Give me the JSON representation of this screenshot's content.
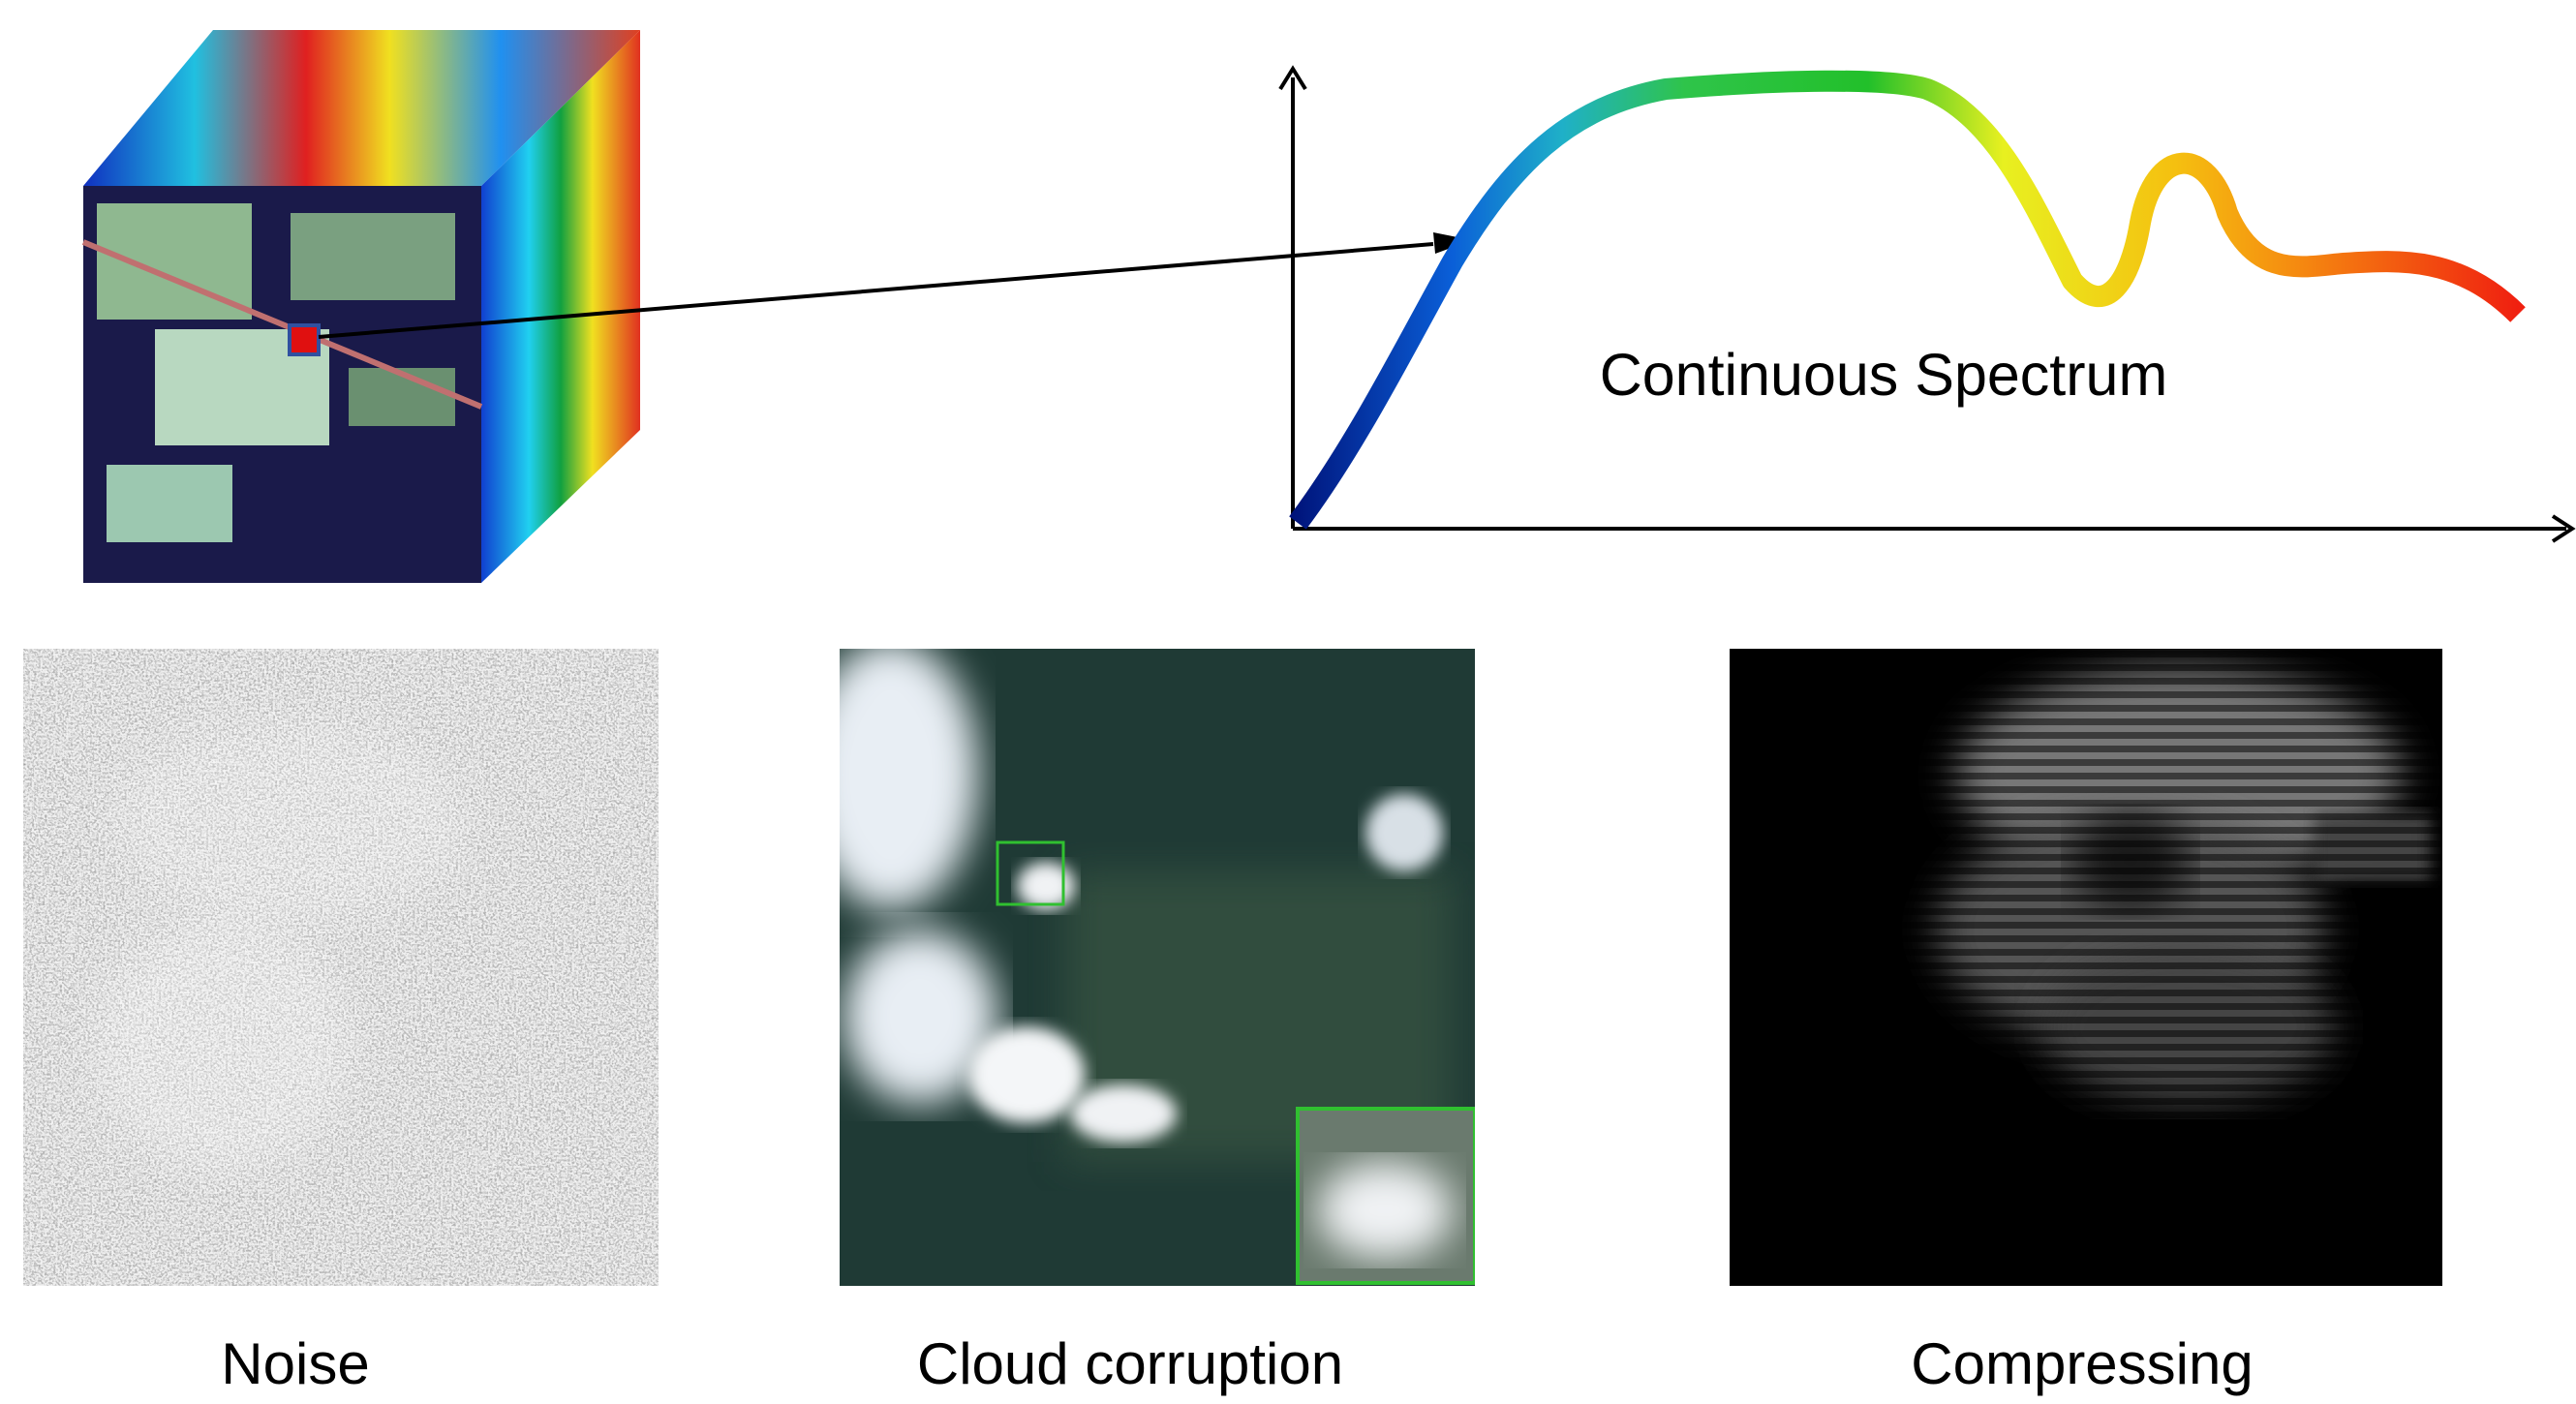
{
  "spectrum": {
    "label": "Continuous Spectrum"
  },
  "panels": [
    {
      "caption": "Noise"
    },
    {
      "caption": "Cloud corruption"
    },
    {
      "caption": "Compressing"
    }
  ]
}
